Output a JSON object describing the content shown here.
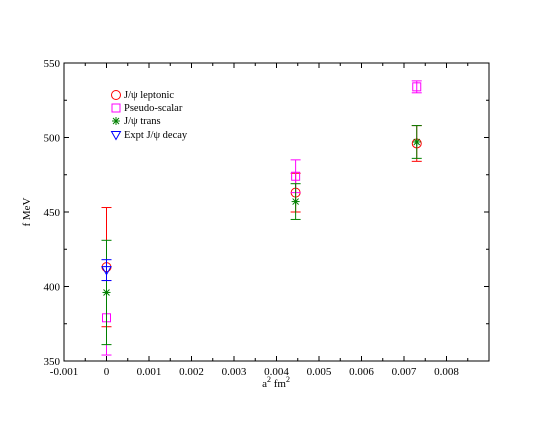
{
  "chart_data": {
    "type": "scatter",
    "title": "",
    "xlabel": "a² fm²",
    "ylabel": "f MeV",
    "xlim": [
      -0.001,
      0.009
    ],
    "ylim": [
      350,
      550
    ],
    "x_ticks": [
      -0.001,
      0,
      0.001,
      0.002,
      0.003,
      0.004,
      0.005,
      0.006,
      0.007,
      0.008
    ],
    "x_tick_labels": [
      "-0.001",
      "0",
      "0.001",
      "0.002",
      "0.003",
      "0.004",
      "0.005",
      "0.006",
      "0.007",
      "0.008"
    ],
    "y_ticks": [
      350,
      400,
      450,
      500,
      550
    ],
    "y_tick_labels": [
      "350",
      "400",
      "450",
      "500",
      "550"
    ],
    "grid": false,
    "legend_position": "top-left",
    "series": [
      {
        "name": "J/ψ leptonic",
        "marker": "circle",
        "color": "#ff0000",
        "points": [
          {
            "x": 0,
            "y": 413,
            "err": 40
          },
          {
            "x": 0.00445,
            "y": 463,
            "err": 13
          },
          {
            "x": 0.0073,
            "y": 496,
            "err": 12
          }
        ]
      },
      {
        "name": "Pseudo-scalar",
        "marker": "square",
        "color": "#ff00ff",
        "points": [
          {
            "x": 0,
            "y": 379,
            "err": 25
          },
          {
            "x": 0.00445,
            "y": 474,
            "err": 11
          },
          {
            "x": 0.0073,
            "y": 534,
            "err": 4
          }
        ]
      },
      {
        "name": "J/ψ trans",
        "marker": "star",
        "color": "#008000",
        "points": [
          {
            "x": 0,
            "y": 396,
            "err": 35
          },
          {
            "x": 0.00445,
            "y": 457,
            "err": 12
          },
          {
            "x": 0.0073,
            "y": 497,
            "err": 11
          }
        ]
      },
      {
        "name": "Expt J/ψ decay",
        "marker": "triangle-down",
        "color": "#0000ff",
        "points": [
          {
            "x": 0,
            "y": 411,
            "err": 7
          }
        ]
      }
    ]
  }
}
